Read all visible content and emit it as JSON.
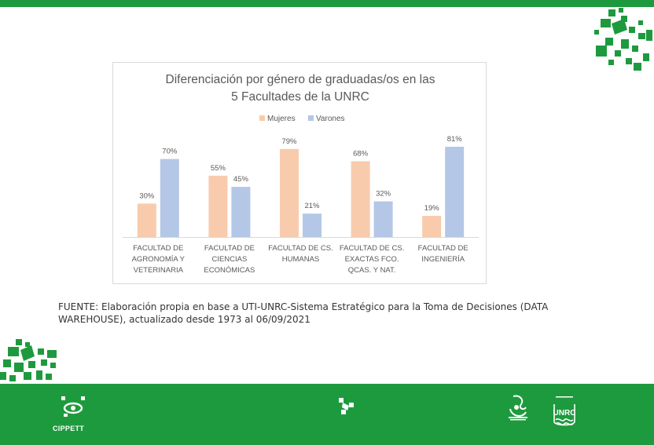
{
  "chart_data": {
    "type": "bar",
    "title": [
      "Diferenciación por género de graduadas/os en las",
      "5 Facultades de la UNRC"
    ],
    "categories": [
      [
        "FACULTAD DE",
        "AGRONOMÍA Y",
        "VETERINARIA"
      ],
      [
        "FACULTAD DE",
        "CIENCIAS",
        "ECONÓMICAS"
      ],
      [
        "FACULTAD DE CS.",
        "HUMANAS"
      ],
      [
        "FACULTAD DE CS.",
        "EXACTAS FCO.",
        "QCAS. Y NAT."
      ],
      [
        "FACULTAD DE",
        "INGENIERÍA"
      ]
    ],
    "series": [
      {
        "name": "Mujeres",
        "color": "#f8cbad",
        "values": [
          30,
          55,
          79,
          68,
          19
        ],
        "labels": [
          "30%",
          "55%",
          "79%",
          "68%",
          "19%"
        ]
      },
      {
        "name": "Varones",
        "color": "#b4c7e7",
        "values": [
          70,
          45,
          21,
          32,
          81
        ],
        "labels": [
          "70%",
          "45%",
          "21%",
          "32%",
          "81%"
        ]
      }
    ],
    "ylim": [
      0,
      100
    ],
    "legend_position": "top",
    "grid": false
  },
  "source_note": "FUENTE: Elaboración propia en base a UTI-UNRC-Sistema Estratégico para la Toma de Decisiones (DATA WAREHOUSE), actualizado desde 1973 al 06/09/2021",
  "logos": {
    "cippett": "CIPPETT",
    "unrc": "UNRC"
  },
  "colors": {
    "brand_green": "#1e9a3e"
  }
}
